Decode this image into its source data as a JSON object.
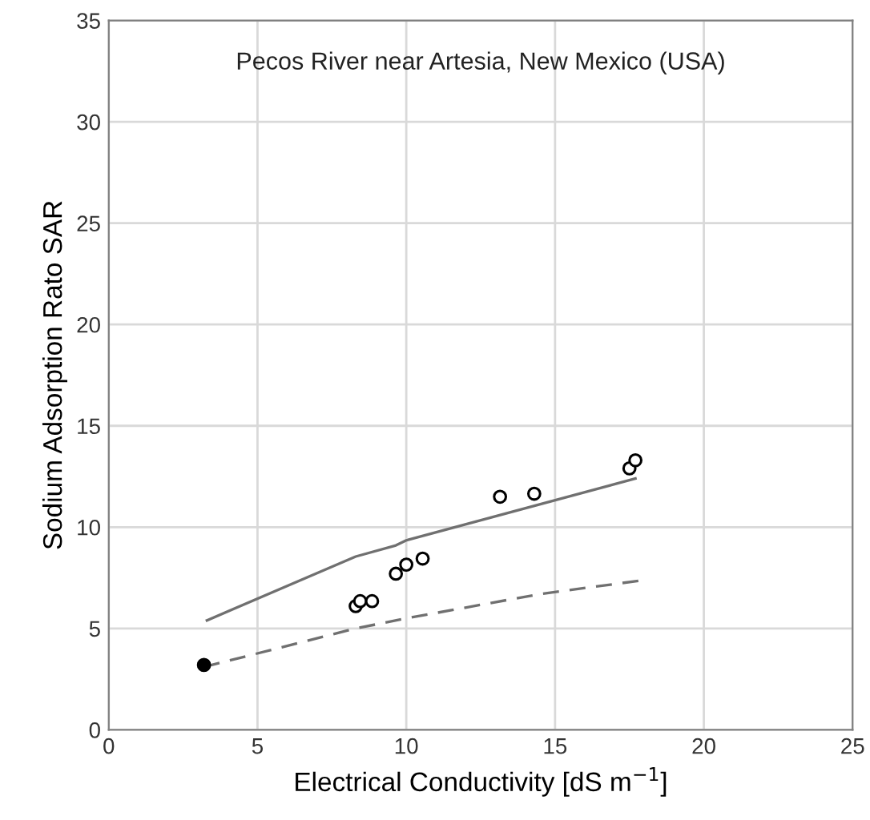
{
  "chart_data": {
    "type": "scatter",
    "title": "Pecos River near Artesia, New Mexico (USA)",
    "xlabel": "Electrical Conductivity [dS m$^{−1}$]",
    "ylabel": "Sodium Adsorption Rato SAR",
    "series": [
      {
        "type": "line",
        "color": "#707070",
        "line_style": "solid",
        "marker": "none",
        "x": [
          3.3,
          8.3,
          9.65,
          10.0,
          17.7
        ],
        "values": [
          5.4,
          8.55,
          9.1,
          9.35,
          12.4
        ]
      },
      {
        "type": "line",
        "color": "#707070",
        "line_style": "dashed",
        "marker": "none",
        "x": [
          3.2,
          8.3,
          10.0,
          14.5,
          17.8
        ],
        "values": [
          3.1,
          5.0,
          5.5,
          6.7,
          7.35
        ]
      },
      {
        "color": "#ffffff",
        "marker": "circle",
        "x": [
          8.3,
          8.45,
          8.85,
          9.65,
          10.0,
          10.55,
          13.15,
          14.3,
          17.5,
          17.7
        ],
        "values": [
          6.1,
          6.35,
          6.35,
          7.7,
          8.15,
          8.45,
          11.5,
          11.65,
          12.9,
          13.3
        ]
      },
      {
        "color": "#000000",
        "marker": "circle",
        "x": [
          3.2
        ],
        "values": [
          3.2
        ]
      }
    ],
    "xlim": [
      0,
      25
    ],
    "xticks": [
      0,
      5,
      10,
      15,
      20,
      25
    ],
    "ylim": [
      0,
      35
    ],
    "yticks": [
      0,
      5,
      10,
      15,
      20,
      25,
      30,
      35
    ],
    "grid": true
  }
}
